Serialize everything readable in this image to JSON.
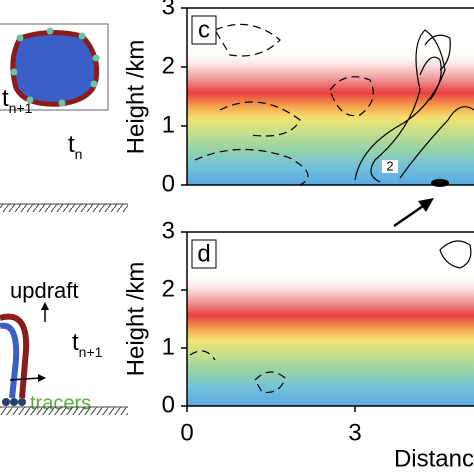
{
  "left": {
    "top_time_next": {
      "base": "t",
      "sub": "n+1"
    },
    "top_time": {
      "base": "t",
      "sub": "n"
    },
    "updraft": "updraft",
    "bottom_time_next": {
      "base": "t",
      "sub": "n+1"
    },
    "tracers": "tracers"
  },
  "panels": [
    {
      "label": "c",
      "y_axis_label": "Height /km",
      "yticks": [
        0,
        1,
        2,
        3
      ],
      "contour_label": "2"
    },
    {
      "label": "d",
      "y_axis_label": "Height /km",
      "yticks": [
        0,
        1,
        2,
        3
      ],
      "xticks": [
        0,
        3
      ],
      "x_axis_label": "Distanc"
    }
  ]
}
